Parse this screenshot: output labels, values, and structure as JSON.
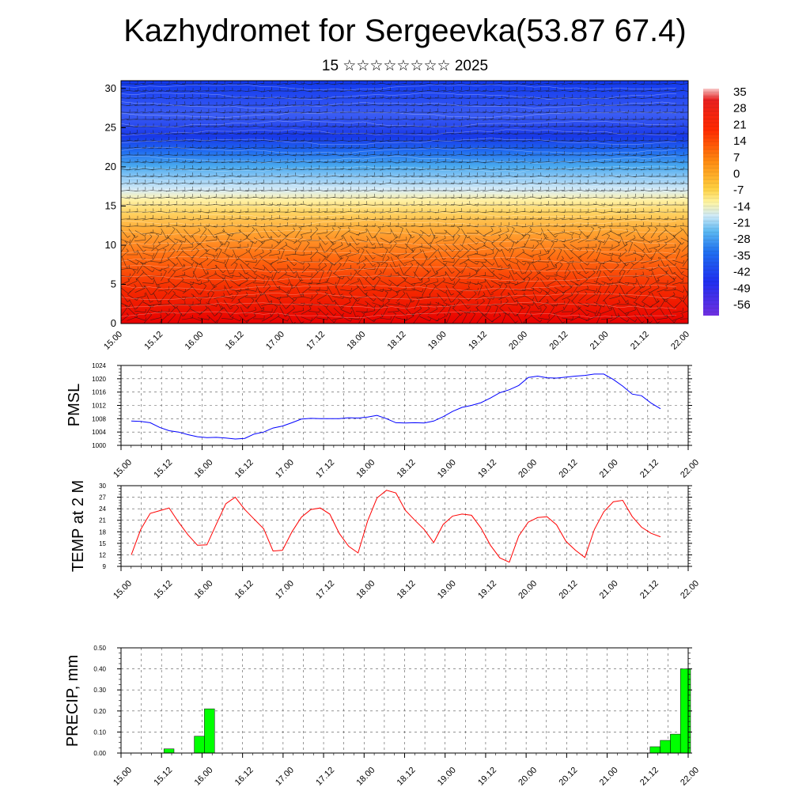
{
  "header": {
    "title": "Kazhydromet for Sergeevka(53.87 67.4)",
    "subtitle": "15 ☆☆☆☆☆☆☆☆ 2025"
  },
  "chart_data": [
    {
      "type": "heatmap",
      "name": "upper-air-section",
      "x_tick_labels": [
        "15.00",
        "15.12",
        "16.00",
        "16.12",
        "17.00",
        "17.12",
        "18.00",
        "18.12",
        "19.00",
        "19.12",
        "20.00",
        "20.12",
        "21.00",
        "21.12",
        "22.00"
      ],
      "y_ticks": [
        0,
        5,
        10,
        15,
        20,
        25,
        30
      ],
      "ylim": [
        0,
        31
      ],
      "colorbar_labels": [
        "35",
        "28",
        "21",
        "14",
        "7",
        "0",
        "-7",
        "-14",
        "-21",
        "-28",
        "-35",
        "-42",
        "-49",
        "-56"
      ],
      "colors": {
        "high": "#e30000",
        "warm": "#ff8a10",
        "mid": "#ffe070",
        "cool": "#4aaaf0",
        "cold": "#1040f0"
      },
      "overlay": "wind barbs"
    },
    {
      "type": "line",
      "name": "pmsl",
      "ylabel": "PMSL",
      "ylim": [
        1000,
        1024
      ],
      "y_ticks": [
        1000,
        1004,
        1008,
        1012,
        1016,
        1020,
        1024
      ],
      "x_tick_labels": [
        "15.00",
        "15.12",
        "16.00",
        "16.12",
        "17.00",
        "17.12",
        "18.00",
        "18.12",
        "19.00",
        "19.12",
        "20.00",
        "20.12",
        "21.00",
        "21.12",
        "22.00"
      ],
      "color": "#0000ff",
      "series": [
        {
          "x": [
            0,
            3,
            6,
            9,
            12,
            15,
            18,
            21,
            24,
            27,
            30,
            33,
            36,
            39,
            42,
            45,
            48,
            51,
            54,
            57,
            60,
            63,
            66,
            69,
            72,
            75,
            78,
            81,
            84,
            87,
            90,
            93,
            96,
            99,
            102,
            105,
            108,
            111,
            114,
            117,
            120,
            123,
            126,
            129,
            132,
            135,
            138,
            141,
            144,
            147,
            150,
            153,
            156,
            159,
            162,
            165,
            168
          ],
          "values": [
            1007.3,
            1007.2,
            1006.8,
            1005.4,
            1004.4,
            1004.0,
            1003.2,
            1002.6,
            1002.3,
            1002.4,
            1002.2,
            1001.9,
            1002.1,
            1003.4,
            1004.0,
            1005.2,
            1005.8,
            1006.8,
            1007.9,
            1008.1,
            1008.0,
            1008.0,
            1008.0,
            1008.3,
            1008.2,
            1008.5,
            1009.0,
            1008.0,
            1006.8,
            1006.7,
            1006.8,
            1006.7,
            1007.3,
            1008.6,
            1010.2,
            1011.4,
            1012.0,
            1012.8,
            1014.2,
            1015.8,
            1016.7,
            1018.0,
            1020.4,
            1020.8,
            1020.3,
            1020.2,
            1020.5,
            1020.8,
            1021.0,
            1021.4,
            1021.4,
            1019.8,
            1017.8,
            1015.4,
            1014.9,
            1012.7,
            1011.0
          ]
        }
      ]
    },
    {
      "type": "line",
      "name": "temp-2m",
      "ylabel": "TEMP at 2 M",
      "ylim": [
        9,
        30
      ],
      "y_ticks": [
        9,
        12,
        15,
        18,
        21,
        24,
        27,
        30
      ],
      "x_tick_labels": [
        "15.00",
        "15.12",
        "16.00",
        "16.12",
        "17.00",
        "17.12",
        "18.00",
        "18.12",
        "19.00",
        "19.12",
        "20.00",
        "20.12",
        "21.00",
        "21.12",
        "22.00"
      ],
      "color": "#ff0000",
      "series": [
        {
          "x": [
            0,
            3,
            6,
            9,
            12,
            15,
            18,
            21,
            24,
            27,
            30,
            33,
            36,
            39,
            42,
            45,
            48,
            51,
            54,
            57,
            60,
            63,
            66,
            69,
            72,
            75,
            78,
            81,
            84,
            87,
            90,
            93,
            96,
            99,
            102,
            105,
            108,
            111,
            114,
            117,
            120,
            123,
            126,
            129,
            132,
            135,
            138,
            141,
            144,
            147,
            150,
            153,
            156,
            159,
            162,
            165,
            168
          ],
          "values": [
            12.0,
            18.6,
            22.8,
            23.5,
            24.2,
            20.5,
            17.2,
            14.5,
            14.6,
            20.0,
            25.3,
            27.0,
            23.8,
            21.3,
            18.8,
            13.0,
            13.2,
            18.0,
            21.8,
            23.8,
            24.2,
            22.6,
            17.6,
            14.2,
            12.5,
            20.8,
            26.8,
            28.8,
            28.1,
            23.6,
            21.0,
            18.6,
            15.2,
            19.9,
            22.1,
            22.6,
            22.3,
            19.0,
            14.5,
            11.2,
            10.1,
            16.9,
            20.5,
            21.7,
            21.9,
            19.8,
            15.5,
            13.2,
            11.3,
            18.6,
            23.2,
            25.8,
            26.2,
            22.0,
            19.2,
            17.6,
            16.7
          ]
        }
      ]
    },
    {
      "type": "bar",
      "name": "precip",
      "ylabel": "PRECIP, mm",
      "ylim": [
        0,
        0.5
      ],
      "y_ticks": [
        "0.00",
        "0.10",
        "0.20",
        "0.30",
        "0.40",
        "0.50"
      ],
      "x_tick_labels": [
        "15.00",
        "15.12",
        "16.00",
        "16.12",
        "17.00",
        "17.12",
        "18.00",
        "18.12",
        "19.00",
        "19.12",
        "20.00",
        "20.12",
        "21.00",
        "21.12",
        "22.00"
      ],
      "color": "#00ff00",
      "bar_width_hours": 3,
      "bars": [
        {
          "x_end": 15,
          "value": 0.02
        },
        {
          "x_end": 24,
          "value": 0.08
        },
        {
          "x_end": 27,
          "value": 0.21
        },
        {
          "x_end": 159,
          "value": 0.03
        },
        {
          "x_end": 162,
          "value": 0.06
        },
        {
          "x_end": 165,
          "value": 0.09
        },
        {
          "x_end": 168,
          "value": 0.4
        }
      ]
    }
  ]
}
